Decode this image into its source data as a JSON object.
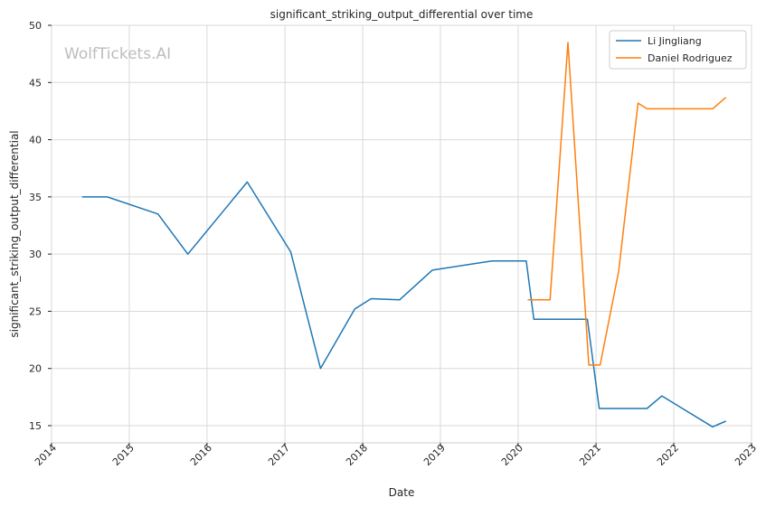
{
  "watermark": "WolfTickets.AI",
  "chart_data": {
    "type": "line",
    "title": "significant_striking_output_differential over time",
    "xlabel": "Date",
    "ylabel": "significant_striking_output_differential",
    "xlim": [
      "2014-01-01",
      "2023-01-01"
    ],
    "ylim": [
      13.5,
      50
    ],
    "x_ticks": [
      "2014",
      "2015",
      "2016",
      "2017",
      "2018",
      "2019",
      "2020",
      "2021",
      "2022",
      "2023"
    ],
    "y_ticks": [
      15,
      20,
      25,
      30,
      35,
      40,
      45,
      50
    ],
    "grid": true,
    "legend_position": "top-right",
    "series": [
      {
        "name": "Li Jingliang",
        "color": "#1f77b4",
        "points": [
          [
            "2014-05-24",
            35.0
          ],
          [
            "2014-09-20",
            35.0
          ],
          [
            "2015-05-16",
            33.5
          ],
          [
            "2015-10-03",
            30.0
          ],
          [
            "2016-07-08",
            36.3
          ],
          [
            "2017-01-28",
            30.2
          ],
          [
            "2017-06-17",
            20.0
          ],
          [
            "2017-11-25",
            25.2
          ],
          [
            "2018-02-10",
            26.1
          ],
          [
            "2018-06-23",
            26.0
          ],
          [
            "2018-11-24",
            28.6
          ],
          [
            "2019-08-31",
            29.4
          ],
          [
            "2020-02-08",
            29.4
          ],
          [
            "2020-03-15",
            24.3
          ],
          [
            "2020-11-21",
            24.3
          ],
          [
            "2021-01-16",
            16.5
          ],
          [
            "2021-08-28",
            16.5
          ],
          [
            "2021-11-06",
            17.6
          ],
          [
            "2022-07-02",
            14.9
          ],
          [
            "2022-09-03",
            15.4
          ]
        ]
      },
      {
        "name": "Daniel Rodriguez",
        "color": "#ff7f0e",
        "points": [
          [
            "2020-02-15",
            26.0
          ],
          [
            "2020-05-30",
            26.0
          ],
          [
            "2020-08-22",
            48.5
          ],
          [
            "2020-11-28",
            20.3
          ],
          [
            "2021-01-20",
            20.3
          ],
          [
            "2021-04-17",
            28.5
          ],
          [
            "2021-07-17",
            43.2
          ],
          [
            "2021-08-28",
            42.7
          ],
          [
            "2022-07-02",
            42.7
          ],
          [
            "2022-09-03",
            43.7
          ]
        ]
      }
    ]
  }
}
